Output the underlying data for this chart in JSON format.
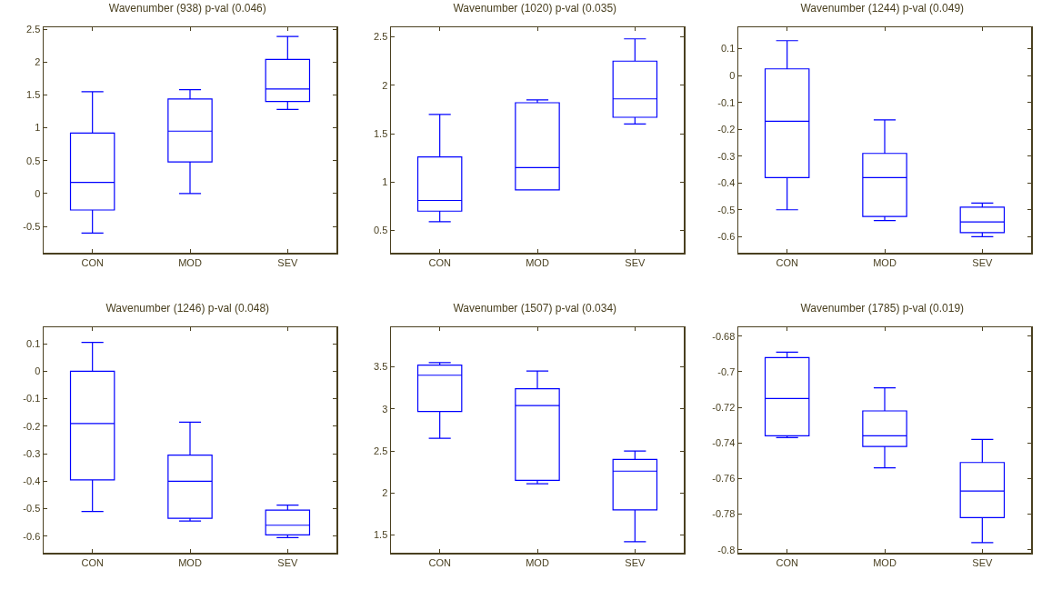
{
  "chart_data": [
    {
      "type": "box",
      "title": "Wavenumber (938) p-val (0.046)",
      "categories": [
        "CON",
        "MOD",
        "SEV"
      ],
      "ylim": [
        -0.9,
        2.53
      ],
      "yticks": [
        -0.5,
        0,
        0.5,
        1,
        1.5,
        2,
        2.5
      ],
      "series": [
        {
          "color": "#0000ff",
          "boxes": [
            {
              "low": -0.6,
              "q1": -0.25,
              "median": 0.17,
              "q3": 0.92,
              "high": 1.55
            },
            {
              "low": 0,
              "q1": 0.48,
              "median": 0.95,
              "q3": 1.44,
              "high": 1.58
            },
            {
              "low": 1.28,
              "q1": 1.4,
              "median": 1.59,
              "q3": 2.04,
              "high": 2.39
            }
          ]
        }
      ]
    },
    {
      "type": "box",
      "title": "Wavenumber (1020) p-val (0.035)",
      "categories": [
        "CON",
        "MOD",
        "SEV"
      ],
      "ylim": [
        0.27,
        2.6
      ],
      "yticks": [
        0.5,
        1,
        1.5,
        2,
        2.5
      ],
      "series": [
        {
          "color": "#0000ff",
          "boxes": [
            {
              "low": 0.59,
              "q1": 0.7,
              "median": 0.81,
              "q3": 1.26,
              "high": 1.7
            },
            {
              "low": 0.92,
              "q1": 0.92,
              "median": 1.15,
              "q3": 1.82,
              "high": 1.85
            },
            {
              "low": 1.6,
              "q1": 1.67,
              "median": 1.86,
              "q3": 2.25,
              "high": 2.48
            }
          ]
        }
      ]
    },
    {
      "type": "box",
      "title": "Wavenumber (1244) p-val (0.049)",
      "categories": [
        "CON",
        "MOD",
        "SEV"
      ],
      "ylim": [
        -0.66,
        0.18
      ],
      "yticks": [
        -0.6,
        -0.5,
        -0.4,
        -0.3,
        -0.2,
        -0.1,
        0,
        0.1
      ],
      "series": [
        {
          "color": "#0000ff",
          "boxes": [
            {
              "low": -0.5,
              "q1": -0.38,
              "median": -0.17,
              "q3": 0.025,
              "high": 0.13
            },
            {
              "low": -0.54,
              "q1": -0.525,
              "median": -0.38,
              "q3": -0.29,
              "high": -0.165
            },
            {
              "low": -0.6,
              "q1": -0.585,
              "median": -0.545,
              "q3": -0.49,
              "high": -0.475
            }
          ]
        }
      ]
    },
    {
      "type": "box",
      "title": "Wavenumber (1246) p-val (0.048)",
      "categories": [
        "CON",
        "MOD",
        "SEV"
      ],
      "ylim": [
        -0.66,
        0.16
      ],
      "yticks": [
        -0.6,
        -0.5,
        -0.4,
        -0.3,
        -0.2,
        -0.1,
        0,
        0.1
      ],
      "series": [
        {
          "color": "#0000ff",
          "boxes": [
            {
              "low": -0.51,
              "q1": -0.395,
              "median": -0.19,
              "q3": 0,
              "high": 0.105
            },
            {
              "low": -0.545,
              "q1": -0.535,
              "median": -0.4,
              "q3": -0.305,
              "high": -0.185
            },
            {
              "low": -0.605,
              "q1": -0.595,
              "median": -0.56,
              "q3": -0.505,
              "high": -0.487
            }
          ]
        }
      ]
    },
    {
      "type": "box",
      "title": "Wavenumber (1507) p-val (0.034)",
      "categories": [
        "CON",
        "MOD",
        "SEV"
      ],
      "ylim": [
        1.29,
        3.97
      ],
      "yticks": [
        1.5,
        2,
        2.5,
        3,
        3.5
      ],
      "series": [
        {
          "color": "#0000ff",
          "boxes": [
            {
              "low": 2.65,
              "q1": 2.97,
              "median": 3.4,
              "q3": 3.52,
              "high": 3.55
            },
            {
              "low": 2.11,
              "q1": 2.15,
              "median": 3.04,
              "q3": 3.24,
              "high": 3.45
            },
            {
              "low": 1.42,
              "q1": 1.8,
              "median": 2.26,
              "q3": 2.4,
              "high": 2.5
            }
          ]
        }
      ]
    },
    {
      "type": "box",
      "title": "Wavenumber (1785) p-val (0.019)",
      "categories": [
        "CON",
        "MOD",
        "SEV"
      ],
      "ylim": [
        -0.8017,
        -0.675
      ],
      "yticks": [
        -0.8,
        -0.78,
        -0.76,
        -0.74,
        -0.72,
        -0.7,
        -0.68
      ],
      "series": [
        {
          "color": "#0000ff",
          "boxes": [
            {
              "low": -0.737,
              "q1": -0.736,
              "median": -0.715,
              "q3": -0.692,
              "high": -0.689
            },
            {
              "low": -0.754,
              "q1": -0.742,
              "median": -0.736,
              "q3": -0.722,
              "high": -0.709
            },
            {
              "low": -0.796,
              "q1": -0.782,
              "median": -0.767,
              "q3": -0.751,
              "high": -0.738
            }
          ]
        }
      ]
    }
  ]
}
